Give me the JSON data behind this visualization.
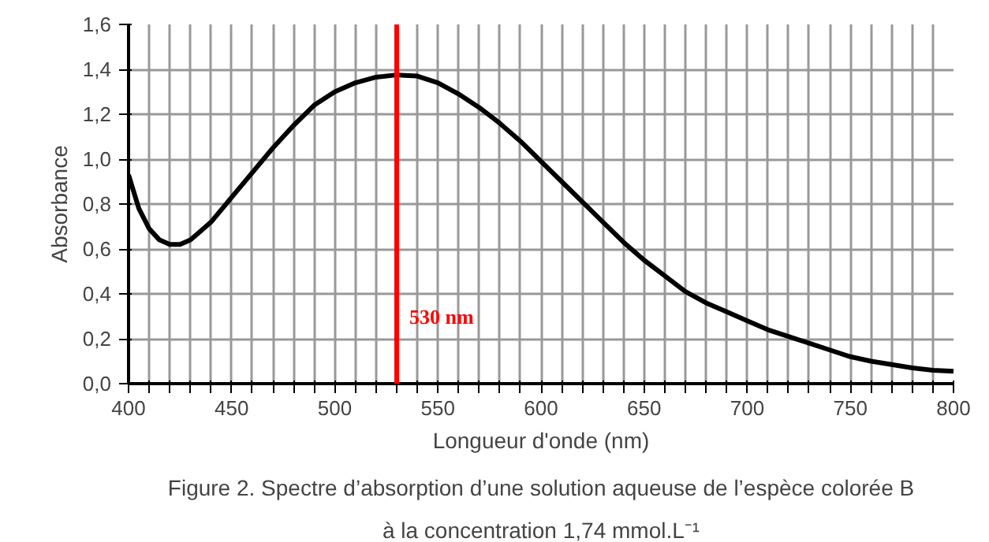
{
  "chart_data": {
    "type": "line",
    "xlabel": "Longueur d'onde (nm)",
    "ylabel": "Absorbance",
    "x": [
      400,
      405,
      410,
      415,
      420,
      425,
      430,
      440,
      450,
      460,
      470,
      480,
      490,
      500,
      510,
      520,
      530,
      540,
      550,
      560,
      570,
      580,
      590,
      600,
      610,
      620,
      630,
      640,
      650,
      660,
      670,
      680,
      690,
      700,
      710,
      720,
      730,
      740,
      750,
      760,
      770,
      780,
      790,
      800
    ],
    "series": [
      {
        "color": "#000000",
        "values": [
          0.93,
          0.78,
          0.69,
          0.64,
          0.62,
          0.62,
          0.64,
          0.72,
          0.83,
          0.94,
          1.05,
          1.15,
          1.24,
          1.3,
          1.34,
          1.365,
          1.375,
          1.37,
          1.34,
          1.29,
          1.23,
          1.16,
          1.08,
          0.99,
          0.9,
          0.81,
          0.72,
          0.63,
          0.55,
          0.48,
          0.41,
          0.36,
          0.32,
          0.28,
          0.24,
          0.21,
          0.18,
          0.15,
          0.12,
          0.1,
          0.085,
          0.07,
          0.06,
          0.055
        ]
      }
    ],
    "xlim": [
      400,
      800
    ],
    "ylim": [
      0,
      1.6
    ],
    "xticks": [
      400,
      {
        "value": 410,
        "label": null
      },
      {
        "value": 420,
        "label": null
      },
      {
        "value": 430,
        "label": null
      },
      {
        "value": 440,
        "label": null
      },
      450,
      {
        "value": 460,
        "label": null
      },
      {
        "value": 470,
        "label": null
      },
      {
        "value": 480,
        "label": null
      },
      {
        "value": 490,
        "label": null
      },
      500,
      {
        "value": 510,
        "label": null
      },
      {
        "value": 520,
        "label": null
      },
      {
        "value": 530,
        "label": null
      },
      {
        "value": 540,
        "label": null
      },
      550,
      {
        "value": 560,
        "label": null
      },
      {
        "value": 570,
        "label": null
      },
      {
        "value": 580,
        "label": null
      },
      {
        "value": 590,
        "label": null
      },
      600,
      {
        "value": 610,
        "label": null
      },
      {
        "value": 620,
        "label": null
      },
      {
        "value": 630,
        "label": null
      },
      {
        "value": 640,
        "label": null
      },
      650,
      {
        "value": 660,
        "label": null
      },
      {
        "value": 670,
        "label": null
      },
      {
        "value": 680,
        "label": null
      },
      {
        "value": 690,
        "label": null
      },
      700,
      {
        "value": 710,
        "label": null
      },
      {
        "value": 720,
        "label": null
      },
      {
        "value": 730,
        "label": null
      },
      {
        "value": 740,
        "label": null
      },
      750,
      {
        "value": 760,
        "label": null
      },
      {
        "value": 770,
        "label": null
      },
      {
        "value": 780,
        "label": null
      },
      {
        "value": 790,
        "label": null
      },
      800
    ],
    "yticks": [
      {
        "value": 0,
        "label": "0,0"
      },
      {
        "value": 0.2,
        "label": "0,2"
      },
      {
        "value": 0.4,
        "label": "0,4"
      },
      {
        "value": 0.6,
        "label": "0,6"
      },
      {
        "value": 0.8,
        "label": "0,8"
      },
      {
        "value": 1.0,
        "label": "1,0"
      },
      {
        "value": 1.2,
        "label": "1,2"
      },
      {
        "value": 1.4,
        "label": "1,4"
      },
      {
        "value": 1.6,
        "label": "1,6"
      }
    ],
    "grid": true,
    "marker": "none",
    "line_style": "solid",
    "ref_lines": [
      {
        "axis": "x",
        "value": 530,
        "label": "530 nm",
        "color": "#ff0000"
      }
    ],
    "annotations": [
      "Figure 2. Spectre d’absorption d’une solution aqueuse de l’espèce colorée B\nà la concentration 1,74 mmol.L⁻¹"
    ]
  }
}
